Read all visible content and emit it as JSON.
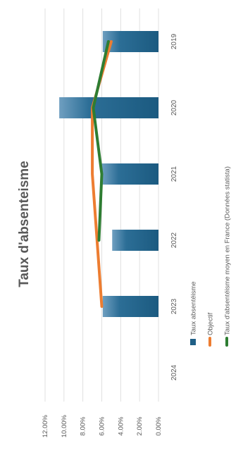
{
  "chart_data": {
    "type": "bar",
    "title": "Taux d'absenteisme",
    "categories": [
      "2019",
      "2020",
      "2021",
      "2022",
      "2023",
      "2024"
    ],
    "ylim": [
      0,
      12
    ],
    "yticks": [
      "0.00%",
      "2.00%",
      "4.00%",
      "6.00%",
      "8.00%",
      "10.00%",
      "12.00%"
    ],
    "grid": true,
    "legend_position": "bottom",
    "series": [
      {
        "name": "Taux absentéisme",
        "kind": "bar",
        "color": "#1F5F86",
        "values": [
          5.9,
          10.5,
          6.0,
          4.9,
          5.9,
          null
        ]
      },
      {
        "name": "Objectif",
        "kind": "line",
        "color": "#ED7D31",
        "values": [
          5.0,
          7.0,
          7.0,
          null,
          6.0,
          null
        ]
      },
      {
        "name": "Taux d'absentéisme moyen en France (Données statista)",
        "kind": "line",
        "color": "#2E7D32",
        "values": [
          5.3,
          6.9,
          6.0,
          6.3,
          null,
          null
        ]
      }
    ]
  }
}
